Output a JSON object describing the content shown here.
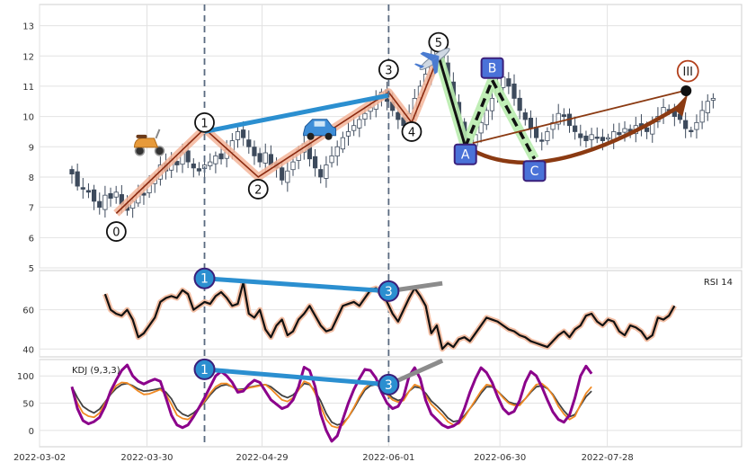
{
  "chart_data": [
    {
      "panel": "price",
      "type": "candlestick",
      "y_ticks": [
        "5",
        "6",
        "7",
        "8",
        "9",
        "10",
        "11",
        "12",
        "13"
      ],
      "ylim": [
        5,
        13.7
      ],
      "x_date_range": [
        "2022-03-02",
        "2022-09-01"
      ],
      "x_tick_labels": [
        {
          "date": "2022-03-02",
          "label": "2022-03-02"
        },
        {
          "date": "2022-03-30",
          "label": "2022-03-30"
        },
        {
          "date": "2022-04-29",
          "label": "2022-04-29"
        },
        {
          "date": "2022-06-01",
          "label": "2022-06-01"
        },
        {
          "date": "2022-06-30",
          "label": "2022-06-30"
        },
        {
          "date": "2022-07-28",
          "label": "2022-07-28"
        }
      ],
      "grid": true,
      "close": [
        8.1,
        7.7,
        7.6,
        7.5,
        7.2,
        7.0,
        7.4,
        7.3,
        7.5,
        7.1,
        6.9,
        7.2,
        7.5,
        7.4,
        7.8,
        8.0,
        8.4,
        8.2,
        8.6,
        8.4,
        8.8,
        8.5,
        8.3,
        8.2,
        8.4,
        8.5,
        8.7,
        8.6,
        8.9,
        9.2,
        9.5,
        9.3,
        9.0,
        8.7,
        8.5,
        8.8,
        8.4,
        8.3,
        7.9,
        8.2,
        8.5,
        8.9,
        9.1,
        8.6,
        8.3,
        8.0,
        8.4,
        8.7,
        9.0,
        9.3,
        9.5,
        9.7,
        9.9,
        10.1,
        10.3,
        10.6,
        10.8,
        10.5,
        10.2,
        9.9,
        9.7,
        10.1,
        10.6,
        11.0,
        11.4,
        11.9,
        12.3,
        11.8,
        11.2,
        10.4,
        9.8,
        9.1,
        9.0,
        9.4,
        9.8,
        10.2,
        10.6,
        11.0,
        11.3,
        11.0,
        10.6,
        10.2,
        9.9,
        9.6,
        9.3,
        9.2,
        9.5,
        9.8,
        10.1,
        10.0,
        9.7,
        9.5,
        9.3,
        9.2,
        9.4,
        9.3,
        9.2,
        9.3,
        9.5,
        9.4,
        9.6,
        9.5,
        9.7,
        9.6,
        9.5,
        9.8,
        10.0,
        10.3,
        10.2,
        10.0,
        9.9,
        9.6,
        9.5,
        9.8,
        10.2,
        10.5,
        10.6
      ],
      "annotations": {
        "wave_labels": [
          {
            "label": "0",
            "date": "2022-03-22",
            "price": 6.2
          },
          {
            "label": "1",
            "date": "2022-04-14",
            "price": 9.8
          },
          {
            "label": "2",
            "date": "2022-04-28",
            "price": 7.6
          },
          {
            "label": "3",
            "date": "2022-06-01",
            "price": 11.6
          },
          {
            "label": "4",
            "date": "2022-06-07",
            "price": 9.5
          },
          {
            "label": "5",
            "date": "2022-06-14",
            "price": 12.5
          },
          {
            "label": "A",
            "date": "2022-06-21",
            "price": 8.8
          },
          {
            "label": "B",
            "date": "2022-06-28",
            "price": 11.6
          },
          {
            "label": "C",
            "date": "2022-07-09",
            "price": 8.2
          },
          {
            "label": "III",
            "date": "2022-08-18",
            "price": 11.5
          }
        ],
        "vertical_lines": [
          "2022-04-14",
          "2022-06-01"
        ],
        "icons": [
          "scooter-icon",
          "car-icon",
          "airplane-icon"
        ]
      }
    },
    {
      "panel": "rsi",
      "type": "line",
      "legend": "RSI 14",
      "y_ticks": [
        "40",
        "60"
      ],
      "ylim": [
        36,
        80
      ],
      "values": [
        68,
        60,
        58,
        57,
        60,
        55,
        46,
        48,
        52,
        56,
        64,
        66,
        67,
        66,
        70,
        68,
        60,
        62,
        64,
        63,
        67,
        69,
        66,
        62,
        63,
        74,
        58,
        56,
        60,
        50,
        46,
        52,
        55,
        47,
        49,
        55,
        58,
        62,
        57,
        52,
        49,
        50,
        56,
        62,
        63,
        64,
        62,
        66,
        70,
        71,
        68,
        64,
        58,
        54,
        60,
        66,
        71,
        67,
        62,
        48,
        52,
        40,
        43,
        41,
        45,
        46,
        44,
        48,
        52,
        56,
        55,
        54,
        52,
        50,
        49,
        47,
        46,
        44,
        43,
        42,
        41,
        44,
        47,
        49,
        46,
        50,
        52,
        57,
        58,
        54,
        52,
        55,
        54,
        49,
        47,
        52,
        51,
        49,
        45,
        47,
        56,
        55,
        57,
        62
      ],
      "divergence_labels": [
        "1",
        "3"
      ]
    },
    {
      "panel": "kdj",
      "type": "line",
      "legend": "KDJ (9,3,3)",
      "y_ticks": [
        "0",
        "50",
        "100"
      ],
      "ylim": [
        -30,
        130
      ],
      "series": [
        {
          "color": "#424242",
          "values": [
            80,
            60,
            44,
            37,
            32,
            39,
            52,
            66,
            77,
            84,
            86,
            82,
            76,
            72,
            73,
            75,
            77,
            70,
            58,
            39,
            30,
            26,
            32,
            41,
            52,
            65,
            76,
            82,
            84,
            80,
            75,
            76,
            79,
            81,
            83,
            84,
            80,
            72,
            64,
            60,
            65,
            75,
            86,
            84,
            72,
            54,
            31,
            15,
            10,
            13,
            24,
            40,
            58,
            74,
            82,
            84,
            78,
            69,
            60,
            55,
            58,
            72,
            80,
            78,
            68,
            54,
            45,
            35,
            23,
            16,
            18,
            27,
            40,
            53,
            68,
            80,
            80,
            72,
            62,
            52,
            49,
            48,
            58,
            70,
            80,
            82,
            77,
            66,
            50,
            36,
            25,
            29,
            46,
            62,
            72
          ]
        },
        {
          "color": "#f08a24",
          "values": [
            76,
            50,
            32,
            26,
            24,
            32,
            50,
            68,
            82,
            88,
            87,
            80,
            72,
            66,
            67,
            71,
            75,
            66,
            48,
            28,
            22,
            20,
            28,
            40,
            54,
            68,
            80,
            86,
            86,
            80,
            74,
            74,
            78,
            80,
            82,
            84,
            76,
            66,
            56,
            53,
            60,
            74,
            90,
            86,
            68,
            44,
            20,
            8,
            5,
            10,
            24,
            42,
            62,
            78,
            86,
            86,
            76,
            66,
            56,
            52,
            55,
            72,
            84,
            80,
            64,
            48,
            38,
            28,
            16,
            10,
            12,
            24,
            40,
            56,
            72,
            84,
            82,
            72,
            60,
            50,
            46,
            46,
            58,
            72,
            84,
            86,
            78,
            64,
            44,
            30,
            20,
            26,
            48,
            68,
            80
          ]
        },
        {
          "color": "#8b008b",
          "values": [
            80,
            40,
            18,
            12,
            16,
            24,
            44,
            72,
            92,
            110,
            120,
            100,
            90,
            85,
            90,
            94,
            90,
            60,
            28,
            10,
            5,
            10,
            25,
            42,
            60,
            80,
            100,
            108,
            100,
            88,
            70,
            72,
            84,
            92,
            88,
            72,
            56,
            48,
            40,
            44,
            56,
            80,
            116,
            110,
            80,
            30,
            0,
            -20,
            -10,
            20,
            50,
            75,
            95,
            112,
            110,
            96,
            70,
            50,
            40,
            44,
            62,
            100,
            115,
            95,
            55,
            30,
            20,
            10,
            5,
            8,
            15,
            40,
            70,
            95,
            115,
            106,
            88,
            62,
            40,
            30,
            35,
            55,
            88,
            108,
            100,
            80,
            56,
            34,
            20,
            15,
            28,
            60,
            100,
            118,
            104
          ]
        }
      ],
      "divergence_labels": [
        "1",
        "3"
      ]
    }
  ]
}
